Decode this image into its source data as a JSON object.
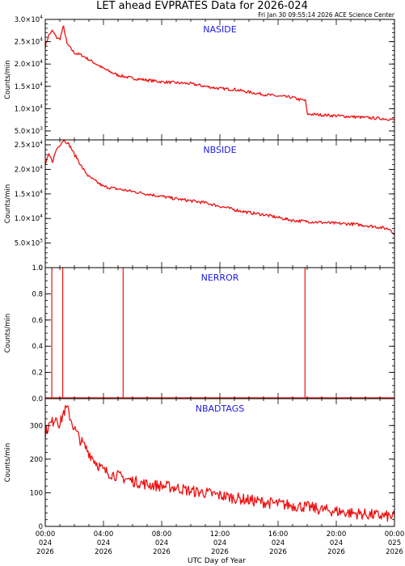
{
  "title": "LET ahead EVPRATES Data for 2026-024",
  "subtitle": "Fri Jan 30 09:55:14 2026 ACE Science Center",
  "xlabel": "UTC Day of Year",
  "colors": {
    "line": "#ee1111",
    "panel_label": "#1a1ae0",
    "axes": "#000000"
  },
  "chart_data": [
    {
      "type": "line",
      "name": "NASIDE",
      "ylabel": "Counts/min",
      "ylim": [
        3000,
        30000
      ],
      "yticks": [
        {
          "value": 5000,
          "mantissa": "5.0×10",
          "exp": "3"
        },
        {
          "value": 10000,
          "mantissa": "1.0×10",
          "exp": "4"
        },
        {
          "value": 15000,
          "mantissa": "1.5×10",
          "exp": "4"
        },
        {
          "value": 20000,
          "mantissa": "2.0×10",
          "exp": "4"
        },
        {
          "value": 25000,
          "mantissa": "2.5×10",
          "exp": "4"
        },
        {
          "value": 30000,
          "mantissa": "3.0×10",
          "exp": "4"
        }
      ],
      "yminor": 1000,
      "series": [
        {
          "x_hours": [
            0,
            0.25,
            0.5,
            0.75,
            1,
            1.25,
            1.5,
            1.75,
            2,
            2.5,
            3,
            3.5,
            4,
            4.5,
            5,
            6,
            7,
            8,
            9,
            10,
            11,
            12,
            13,
            14,
            15,
            16,
            17,
            17.5,
            17.9,
            18,
            18.5,
            19,
            20,
            21,
            22,
            23,
            23.5,
            24
          ],
          "values": [
            24000,
            26500,
            27500,
            26000,
            25500,
            28500,
            24500,
            23500,
            22500,
            22000,
            21000,
            20000,
            19000,
            18200,
            17500,
            16800,
            16400,
            16000,
            15800,
            15600,
            15000,
            14500,
            14300,
            13700,
            13200,
            12800,
            12500,
            12000,
            11800,
            8800,
            8700,
            8600,
            8400,
            8200,
            8000,
            7800,
            7700,
            7500
          ]
        }
      ]
    },
    {
      "type": "line",
      "name": "NBSIDE",
      "ylabel": "Counts/min",
      "ylim": [
        0,
        26000
      ],
      "yticks": [
        {
          "value": 0,
          "mantissa": "0",
          "exp": ""
        },
        {
          "value": 5000,
          "mantissa": "5.0×10",
          "exp": "3"
        },
        {
          "value": 10000,
          "mantissa": "1.0×10",
          "exp": "4"
        },
        {
          "value": 15000,
          "mantissa": "1.5×10",
          "exp": "4"
        },
        {
          "value": 20000,
          "mantissa": "2.0×10",
          "exp": "4"
        },
        {
          "value": 25000,
          "mantissa": "2.5×10",
          "exp": "4"
        }
      ],
      "yminor": 1000,
      "series": [
        {
          "x_hours": [
            0,
            0.25,
            0.5,
            0.75,
            1,
            1.25,
            1.5,
            1.75,
            2,
            2.25,
            2.5,
            3,
            3.5,
            4,
            5,
            6,
            7,
            8,
            9,
            10,
            11,
            12,
            13,
            14,
            15,
            16,
            17,
            18,
            19,
            20,
            21,
            22,
            23,
            23.75,
            24
          ],
          "values": [
            21000,
            23000,
            21500,
            24000,
            25000,
            26000,
            25500,
            24500,
            23000,
            22000,
            20500,
            18500,
            17500,
            16500,
            16000,
            15500,
            15000,
            14500,
            14000,
            13600,
            13200,
            12500,
            11800,
            11200,
            10800,
            10200,
            9600,
            9400,
            9200,
            9000,
            8900,
            8600,
            8200,
            7800,
            6500
          ]
        }
      ]
    },
    {
      "type": "line",
      "name": "NERROR",
      "ylabel": "Counts/min",
      "ylim": [
        0,
        1.0
      ],
      "yticks": [
        {
          "value": 0,
          "mantissa": "0.0",
          "exp": ""
        },
        {
          "value": 0.2,
          "mantissa": "0.2",
          "exp": ""
        },
        {
          "value": 0.4,
          "mantissa": "0.4",
          "exp": ""
        },
        {
          "value": 0.6,
          "mantissa": "0.6",
          "exp": ""
        },
        {
          "value": 0.8,
          "mantissa": "0.8",
          "exp": ""
        },
        {
          "value": 1.0,
          "mantissa": "1.0",
          "exp": ""
        }
      ],
      "yminor": 0.05,
      "spikes_hours": [
        0.45,
        1.2,
        5.35,
        17.85
      ],
      "spike_value": 1.0
    },
    {
      "type": "line",
      "name": "NBADTAGS",
      "ylabel": "Counts/min",
      "ylim": [
        0,
        380
      ],
      "yticks": [
        {
          "value": 0,
          "mantissa": "0",
          "exp": ""
        },
        {
          "value": 100,
          "mantissa": "100",
          "exp": ""
        },
        {
          "value": 200,
          "mantissa": "200",
          "exp": ""
        },
        {
          "value": 300,
          "mantissa": "300",
          "exp": ""
        }
      ],
      "yminor": 20,
      "series": [
        {
          "x_hours": [
            0,
            0.25,
            0.5,
            0.75,
            1,
            1.25,
            1.5,
            1.75,
            2,
            2.5,
            3,
            3.5,
            4,
            5,
            6,
            7,
            8,
            9,
            10,
            11,
            12,
            13,
            14,
            15,
            16,
            17,
            18,
            19,
            20,
            21,
            22,
            23,
            24
          ],
          "values": [
            280,
            300,
            310,
            330,
            300,
            340,
            350,
            320,
            290,
            250,
            220,
            190,
            165,
            150,
            135,
            125,
            120,
            115,
            105,
            100,
            92,
            85,
            78,
            72,
            67,
            62,
            58,
            50,
            45,
            40,
            36,
            32,
            28
          ]
        }
      ]
    }
  ],
  "xaxis": {
    "range_hours": [
      0,
      24
    ],
    "ticks": [
      {
        "hours": 0,
        "time": "00:00",
        "doy": "024",
        "year": "2026"
      },
      {
        "hours": 4,
        "time": "04:00",
        "doy": "024",
        "year": "2026"
      },
      {
        "hours": 8,
        "time": "08:00",
        "doy": "024",
        "year": "2026"
      },
      {
        "hours": 12,
        "time": "12:00",
        "doy": "024",
        "year": "2026"
      },
      {
        "hours": 16,
        "time": "16:00",
        "doy": "024",
        "year": "2026"
      },
      {
        "hours": 20,
        "time": "20:00",
        "doy": "024",
        "year": "2026"
      },
      {
        "hours": 24,
        "time": "00:00",
        "doy": "025",
        "year": "2026"
      }
    ]
  }
}
